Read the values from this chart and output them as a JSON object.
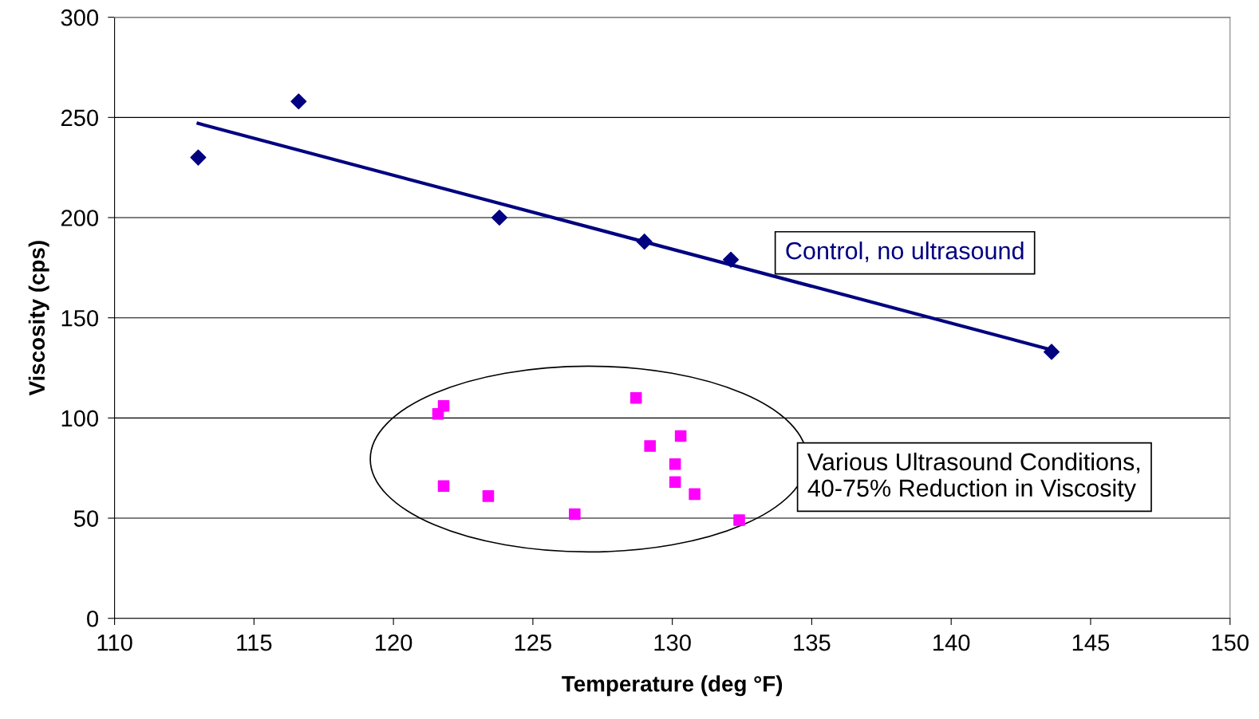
{
  "chart_data": {
    "type": "scatter",
    "xlabel": "Temperature (deg °F)",
    "ylabel": "Viscosity (cps)",
    "xlim": [
      110,
      150
    ],
    "xticks": [
      110,
      115,
      120,
      125,
      130,
      135,
      140,
      145,
      150
    ],
    "ylim": [
      0,
      300
    ],
    "yticks": [
      0,
      50,
      100,
      150,
      200,
      250,
      300
    ],
    "grid": "y",
    "legend": false,
    "series": [
      {
        "color": "#000080",
        "marker": "diamond",
        "x": [
          113.0,
          116.6,
          123.8,
          129.0,
          132.1,
          143.6
        ],
        "values": [
          230,
          258,
          200,
          188,
          179,
          133
        ]
      },
      {
        "type": "line",
        "color": "#000080",
        "marker": "none",
        "line_style": "solid",
        "x": [
          113.0,
          143.6
        ],
        "values": [
          247,
          134
        ]
      },
      {
        "color": "#ff00ff",
        "marker": "square",
        "x": [
          121.6,
          121.8,
          121.8,
          123.4,
          126.5,
          128.7,
          129.2,
          130.3,
          130.1,
          130.1,
          130.8,
          132.4
        ],
        "values": [
          102,
          106,
          66,
          61,
          52,
          110,
          86,
          91,
          77,
          68,
          62,
          49
        ]
      }
    ],
    "annotations": [
      "Control, no ultrasound",
      "Various Ultrasound Conditions,\n40-75% Reduction in Viscosity"
    ]
  }
}
